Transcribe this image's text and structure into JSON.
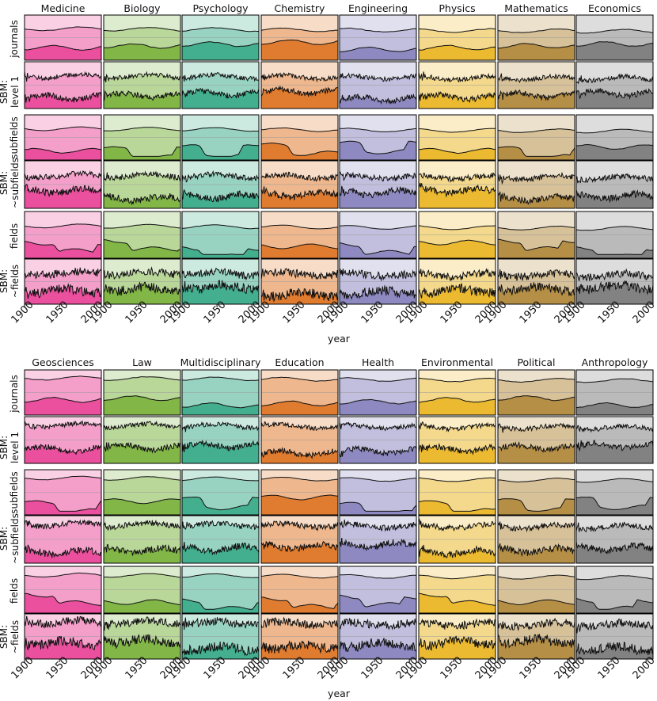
{
  "chart_data": {
    "type": "area",
    "x_range": [
      1900,
      2010
    ],
    "x_ticks": [
      1900,
      1950,
      2000
    ],
    "xlabel": "year",
    "row_labels": [
      [
        "journals"
      ],
      [
        "SBM:",
        "level 1"
      ],
      [
        "subfields"
      ],
      [
        "SBM:",
        "~subfields"
      ],
      [
        "fields"
      ],
      [
        "SBM:",
        "~fields"
      ]
    ],
    "panels": [
      {
        "disciplines": [
          "Medicine",
          "Biology",
          "Psychology",
          "Chemistry",
          "Engineering",
          "Physics",
          "Mathematics",
          "Economics"
        ],
        "colors": [
          "#e7298a",
          "#66a61e",
          "#1b9e77",
          "#d95f02",
          "#7570b3",
          "#e6ab02",
          "#a6761d",
          "#666666"
        ]
      },
      {
        "disciplines": [
          "Geosciences",
          "Law",
          "Multidisciplinary",
          "Education",
          "Health",
          "Environmental",
          "Political",
          "Anthropology"
        ],
        "colors": [
          "#e7298a",
          "#66a61e",
          "#1b9e77",
          "#d95f02",
          "#7570b3",
          "#e6ab02",
          "#a6761d",
          "#666666"
        ]
      }
    ],
    "series_note": "Each cell shows two stacked area bands (upper and lower fractions, 0–1) over years 1900–2010 per classification scheme."
  }
}
